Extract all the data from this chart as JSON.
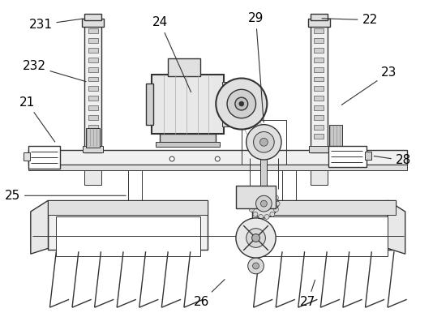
{
  "background_color": "#ffffff",
  "line_color": "#333333",
  "label_color": "#000000",
  "label_fontsize": 11,
  "figsize": [
    5.34,
    3.91
  ],
  "dpi": 100
}
